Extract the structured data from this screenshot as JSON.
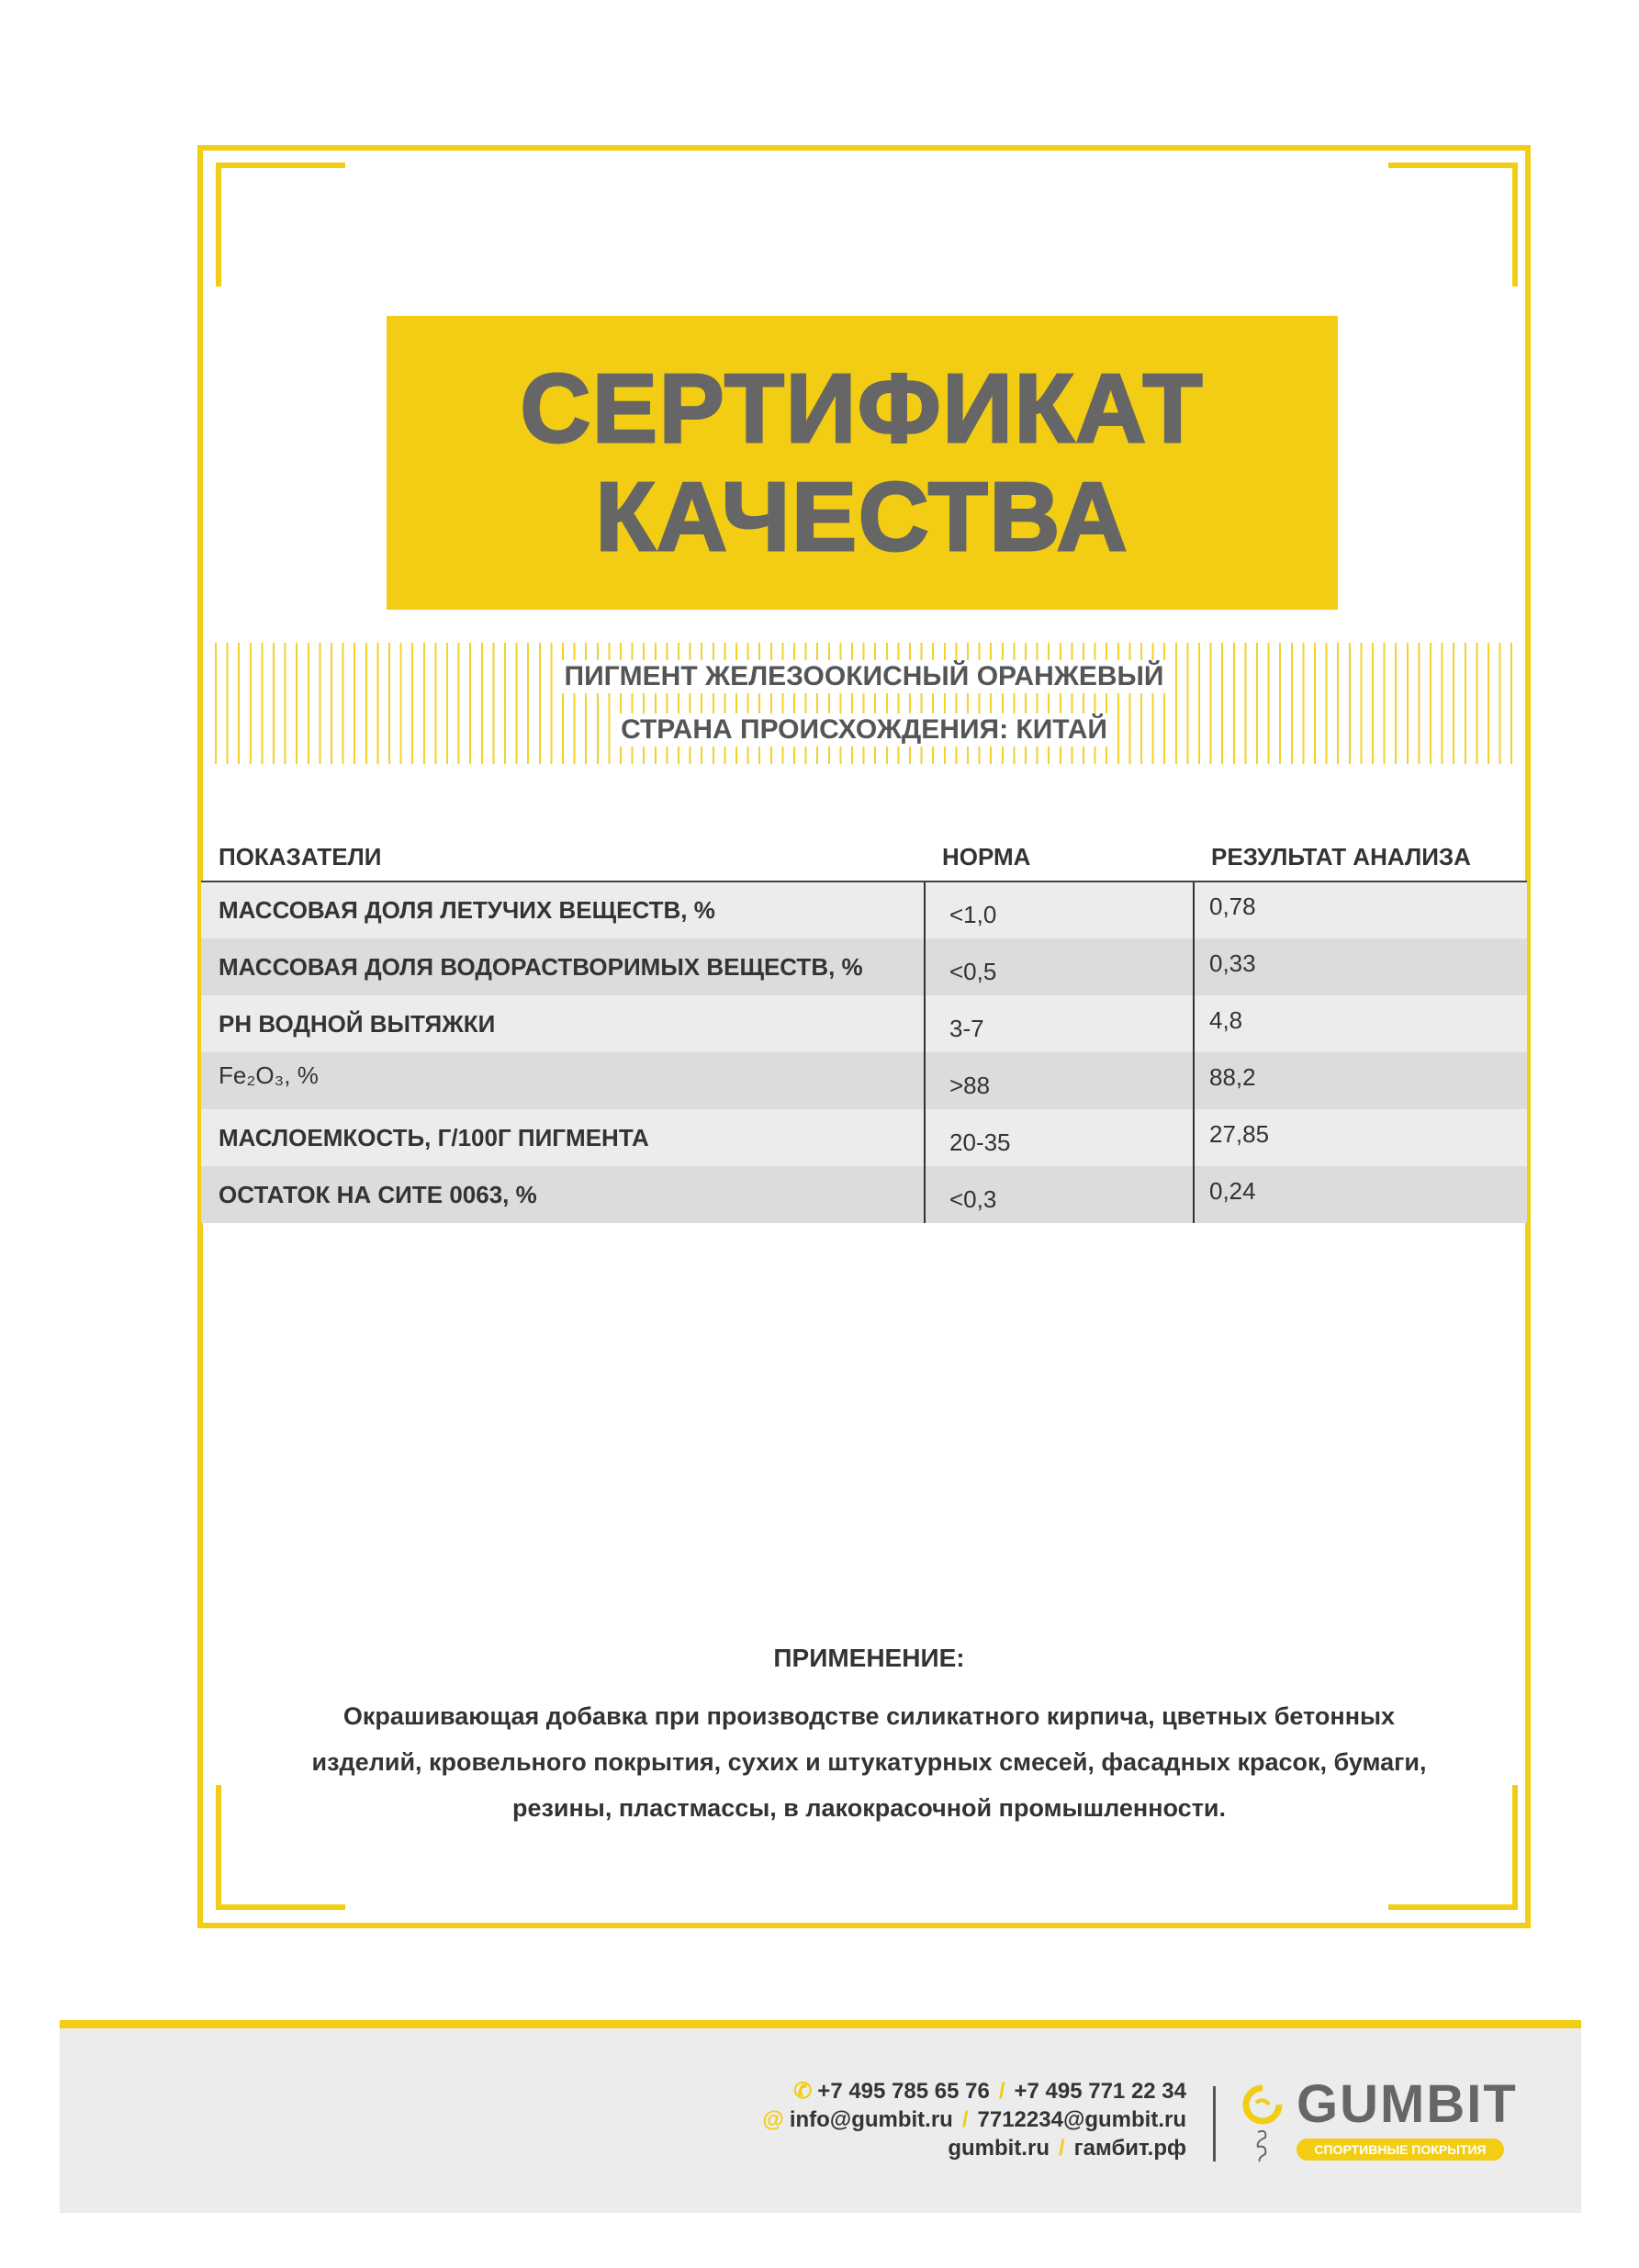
{
  "title": {
    "line1": "СЕРТИФИКАТ",
    "line2": "КАЧЕСТВА"
  },
  "product": {
    "name": "ПИГМЕНТ ЖЕЛЕЗООКИСНЫЙ ОРАНЖЕВЫЙ",
    "origin": "СТРАНА ПРОИСХОЖДЕНИЯ: КИТАЙ"
  },
  "table": {
    "headers": [
      "ПОКАЗАТЕЛИ",
      "НОРМА",
      "РЕЗУЛЬТАТ АНАЛИЗА"
    ],
    "rows": [
      {
        "name": "МАССОВАЯ ДОЛЯ ЛЕТУЧИХ ВЕЩЕСТВ, %",
        "norm": "<1,0",
        "result": "0,78"
      },
      {
        "name": "МАССОВАЯ ДОЛЯ ВОДОРАСТВОРИМЫХ ВЕЩЕСТВ, %",
        "norm": "<0,5",
        "result": "0,33"
      },
      {
        "name": "РН ВОДНОЙ ВЫТЯЖКИ",
        "norm": "3-7",
        "result": "4,8"
      },
      {
        "name": "Fe₂O₃, %",
        "norm": ">88",
        "result": "88,2"
      },
      {
        "name": "МАСЛОЕМКОСТЬ, Г/100Г ПИГМЕНТА",
        "norm": "20-35",
        "result": "27,85"
      },
      {
        "name": "ОСТАТОК НА СИТЕ 0063, %",
        "norm": "<0,3",
        "result": "0,24"
      }
    ]
  },
  "application": {
    "heading": "ПРИМЕНЕНИЕ:",
    "text": "Окрашивающая добавка при производстве силикатного кирпича, цветных бетонных изделий, кровельного покрытия, сухих и штукатурных смесей, фасадных красок, бумаги, резины, пластмассы, в лакокрасочной промышленности."
  },
  "footer": {
    "phone1": "+7 495 785 65 76",
    "phone2": "+7 495 771 22 34",
    "email1": "info@gumbit.ru",
    "email2": "7712234@gumbit.ru",
    "site1": "gumbit.ru",
    "site2": "гамбит.рф",
    "separator": "/",
    "logo": "GUMBIT",
    "tagline": "СПОРТИВНЫЕ ПОКРЫТИЯ"
  },
  "colors": {
    "accent": "#f2cd14",
    "text": "#444444",
    "row_light": "#ececec",
    "row_dark": "#dcdcdc"
  },
  "icons": {
    "phone": "phone-icon",
    "email": "at-icon"
  }
}
